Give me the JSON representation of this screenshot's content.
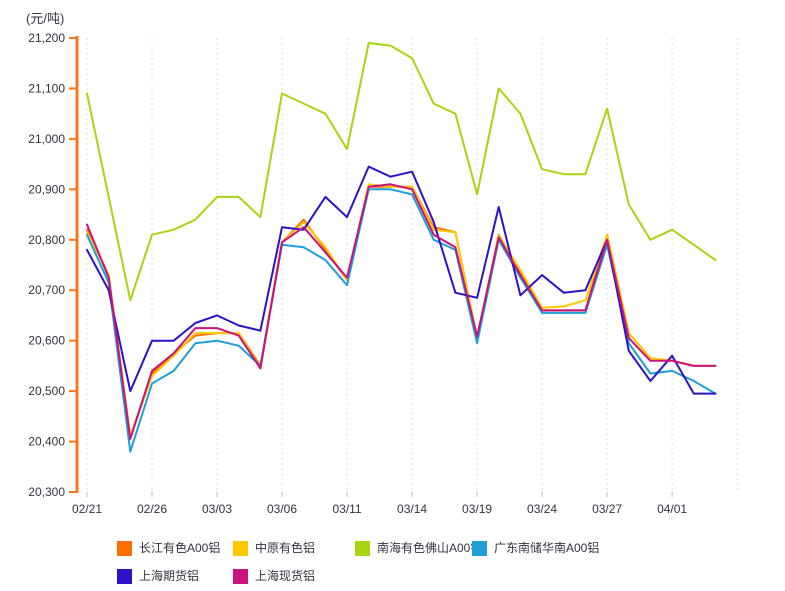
{
  "unit_label": "(元/吨)",
  "chart_data": {
    "type": "line",
    "title": "",
    "xlabel": "",
    "ylabel": "(元/吨)",
    "ylim": [
      20300,
      21200
    ],
    "ytick_step": 100,
    "y_tick_labels": [
      "21,200",
      "21,100",
      "21,000",
      "20,900",
      "20,800",
      "20,700",
      "20,600",
      "20,500",
      "20,400",
      "20,300"
    ],
    "x_tick_labels": [
      "02/21",
      "02/26",
      "03/03",
      "03/06",
      "03/11",
      "03/14",
      "03/19",
      "03/24",
      "03/27",
      "04/01"
    ],
    "x_tick_indices": [
      0,
      3,
      6,
      9,
      12,
      15,
      18,
      21,
      24,
      27
    ],
    "dates": [
      "02/21",
      "02/24",
      "02/25",
      "02/26",
      "02/27",
      "02/28",
      "03/03",
      "03/04",
      "03/05",
      "03/06",
      "03/07",
      "03/10",
      "03/11",
      "03/12",
      "03/13",
      "03/14",
      "03/17",
      "03/18",
      "03/19",
      "03/20",
      "03/21",
      "03/24",
      "03/25",
      "03/26",
      "03/27",
      "03/28",
      "03/31",
      "04/01",
      "04/02",
      "04/03"
    ],
    "grid": "vertical-dashed",
    "legend_position": "bottom",
    "axis_color": "#FF7519",
    "grid_color": "#DDDDDD",
    "tick_text_color": "#333340",
    "series": [
      {
        "name": "长江有色A00铝",
        "color": "#FF6E00",
        "values": [
          20820,
          20730,
          20410,
          20535,
          20575,
          20610,
          20615,
          20615,
          20550,
          20795,
          20840,
          20780,
          20720,
          20905,
          20905,
          20905,
          20825,
          20815,
          20605,
          20810,
          20735,
          20660,
          20660,
          20660,
          20810,
          20615,
          20565,
          20560,
          20550,
          20550
        ]
      },
      {
        "name": "中原有色铝",
        "color": "#FFC800",
        "values": [
          20815,
          20730,
          20410,
          20530,
          20570,
          20615,
          20615,
          20615,
          20545,
          20795,
          20835,
          20785,
          20720,
          20910,
          20905,
          20905,
          20820,
          20815,
          20605,
          20808,
          20740,
          20665,
          20668,
          20680,
          20810,
          20615,
          20565,
          20560,
          20550,
          20550
        ]
      },
      {
        "name": "南海有色佛山A00铝",
        "color": "#A9D411",
        "values": [
          21090,
          20885,
          20680,
          20810,
          20820,
          20840,
          20885,
          20885,
          20845,
          21090,
          21070,
          21050,
          20980,
          21190,
          21185,
          21160,
          21070,
          21050,
          20890,
          21100,
          21050,
          20940,
          20930,
          20930,
          21060,
          20870,
          20800,
          20820,
          20790,
          20760
        ]
      },
      {
        "name": "广东南储华南A00铝",
        "color": "#1E9FD8",
        "values": [
          20810,
          20715,
          20380,
          20515,
          20540,
          20595,
          20600,
          20590,
          20550,
          20790,
          20785,
          20760,
          20710,
          20900,
          20900,
          20890,
          20800,
          20780,
          20595,
          20800,
          20725,
          20655,
          20655,
          20655,
          20790,
          20595,
          20535,
          20540,
          20520,
          20495
        ]
      },
      {
        "name": "上海期货铝",
        "color": "#2D11CB",
        "values": [
          20780,
          20700,
          20500,
          20600,
          20600,
          20635,
          20650,
          20630,
          20620,
          20825,
          20820,
          20885,
          20845,
          20945,
          20925,
          20935,
          20835,
          20695,
          20685,
          20865,
          20690,
          20730,
          20695,
          20700,
          20800,
          20580,
          20520,
          20570,
          20495,
          20495
        ]
      },
      {
        "name": "上海现货铝",
        "color": "#C8137E",
        "values": [
          20830,
          20725,
          20405,
          20540,
          20575,
          20625,
          20625,
          20610,
          20545,
          20795,
          20825,
          20775,
          20725,
          20905,
          20910,
          20900,
          20810,
          20785,
          20608,
          20805,
          20730,
          20660,
          20660,
          20660,
          20800,
          20605,
          20560,
          20560,
          20550,
          20550
        ]
      }
    ]
  }
}
